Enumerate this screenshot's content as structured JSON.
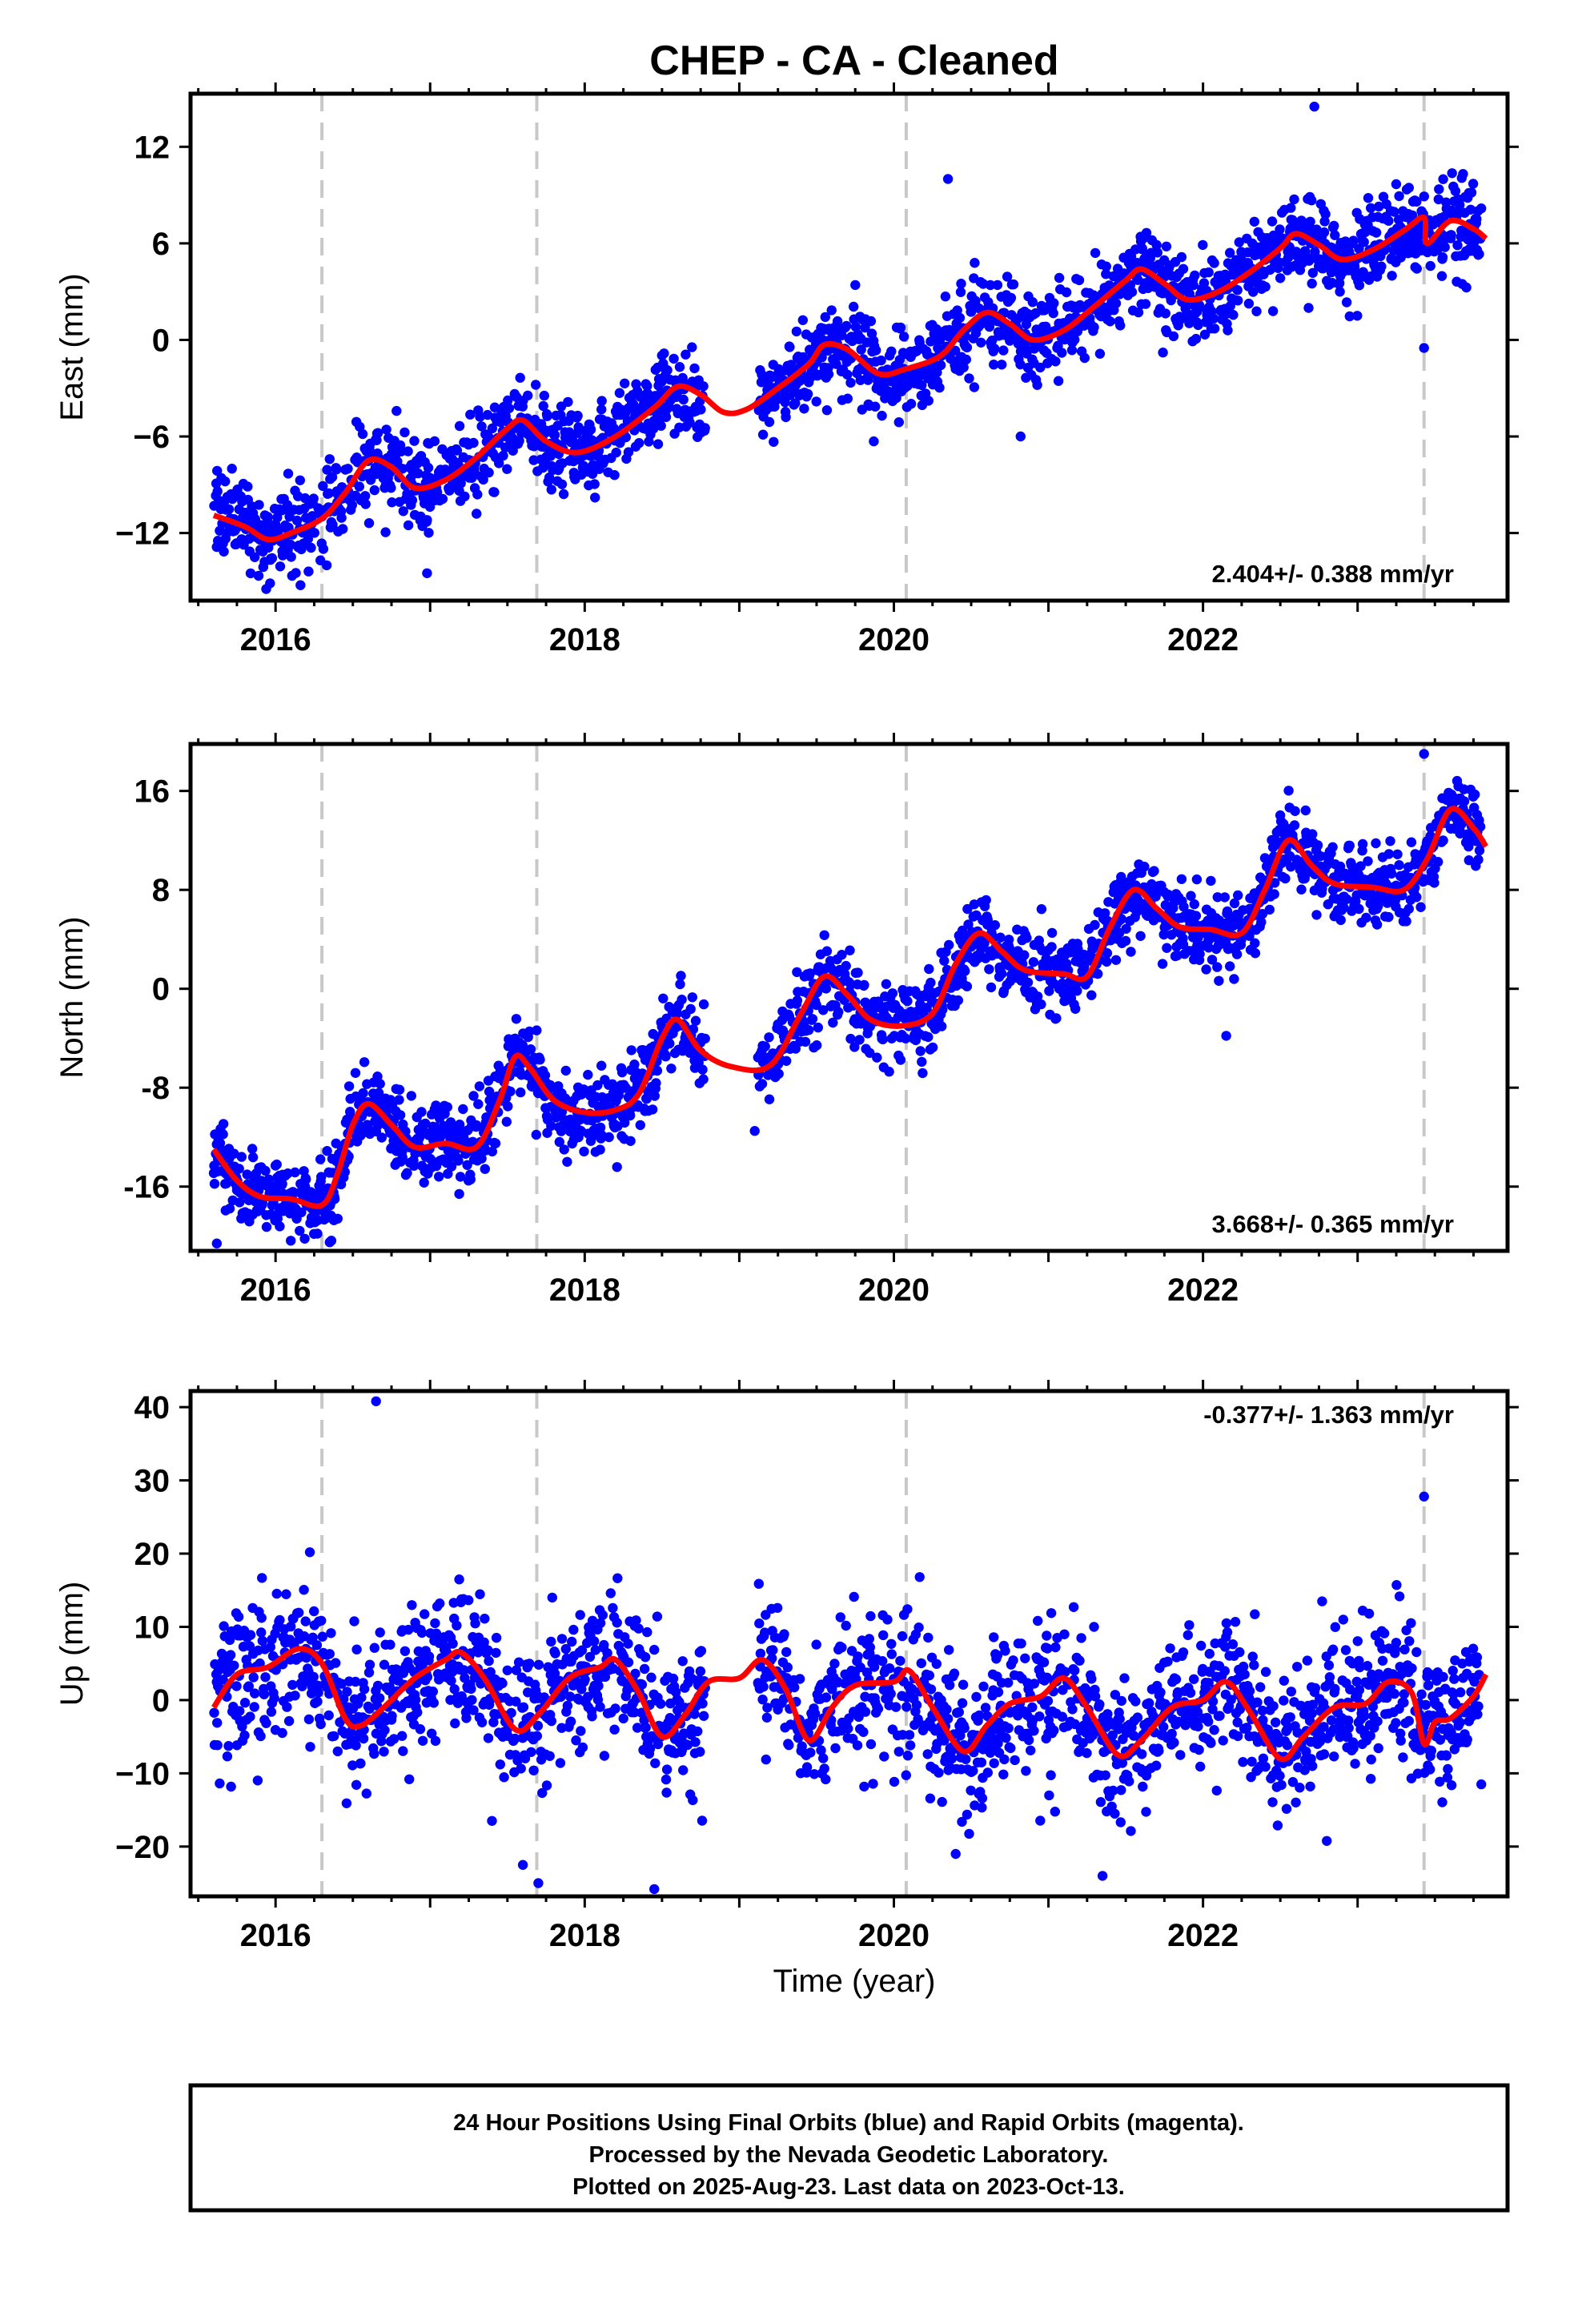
{
  "title": "CHEP  - CA - Cleaned",
  "x_axis_label": "Time (year)",
  "footer": {
    "line1": "24 Hour Positions Using Final Orbits (blue) and Rapid Orbits (magenta).",
    "line2": "Processed by the Nevada Geodetic Laboratory.",
    "line3": "Plotted on 2025-Aug-23. Last data on 2023-Oct-13."
  },
  "colors": {
    "points": "#0000ff",
    "fit": "#ff0000",
    "breaks": "#c8c8c8",
    "frame": "#000000"
  },
  "chart_data": [
    {
      "type": "scatter",
      "ylabel": "East (mm)",
      "rate_text": "2.404+/- 0.388 mm/yr",
      "rate_position": "bottom-right",
      "xlim": [
        2015.45,
        2023.97
      ],
      "ylim": [
        -16.2,
        15.3
      ],
      "xticks": [
        2016,
        2018,
        2020,
        2022
      ],
      "yticks": [
        -12,
        -6,
        0,
        6,
        12
      ],
      "breaks": [
        2016.3,
        2017.69,
        2020.08,
        2023.43
      ],
      "fit_points": [
        [
          2015.6,
          -10.9
        ],
        [
          2015.8,
          -11.6
        ],
        [
          2015.95,
          -12.4
        ],
        [
          2016.1,
          -12.0
        ],
        [
          2016.3,
          -11.1
        ],
        [
          2016.45,
          -9.5
        ],
        [
          2016.6,
          -7.5
        ],
        [
          2016.75,
          -7.9
        ],
        [
          2016.9,
          -9.2
        ],
        [
          2017.1,
          -8.7
        ],
        [
          2017.3,
          -7.3
        ],
        [
          2017.5,
          -5.5
        ],
        [
          2017.6,
          -5.0
        ],
        [
          2017.75,
          -6.3
        ],
        [
          2017.95,
          -7.0
        ],
        [
          2018.2,
          -6.0
        ],
        [
          2018.45,
          -4.2
        ],
        [
          2018.6,
          -2.9
        ],
        [
          2018.75,
          -3.4
        ],
        [
          2018.9,
          -4.5
        ],
        [
          2019.05,
          -4.3
        ],
        [
          2019.25,
          -3.0
        ],
        [
          2019.45,
          -1.5
        ],
        [
          2019.55,
          -0.3
        ],
        [
          2019.7,
          -0.6
        ],
        [
          2019.9,
          -2.1
        ],
        [
          2020.08,
          -1.8
        ],
        [
          2020.3,
          -1.0
        ],
        [
          2020.45,
          0.6
        ],
        [
          2020.6,
          1.7
        ],
        [
          2020.75,
          1.0
        ],
        [
          2020.9,
          0.0
        ],
        [
          2021.1,
          0.6
        ],
        [
          2021.3,
          2.1
        ],
        [
          2021.5,
          3.7
        ],
        [
          2021.6,
          4.4
        ],
        [
          2021.75,
          3.5
        ],
        [
          2021.9,
          2.5
        ],
        [
          2022.1,
          3.0
        ],
        [
          2022.3,
          4.2
        ],
        [
          2022.5,
          5.7
        ],
        [
          2022.6,
          6.6
        ],
        [
          2022.75,
          5.9
        ],
        [
          2022.9,
          5.0
        ],
        [
          2023.1,
          5.6
        ],
        [
          2023.3,
          6.8
        ],
        [
          2023.43,
          7.6
        ],
        [
          2023.45,
          6.0
        ],
        [
          2023.6,
          7.4
        ],
        [
          2023.75,
          6.9
        ],
        [
          2023.83,
          6.3
        ]
      ],
      "scatter_model": {
        "years": [
          2015.6,
          2023.8
        ],
        "noise": 1.35,
        "outliers": [
          [
            2020.35,
            10.0
          ],
          [
            2022.72,
            14.5
          ],
          [
            2016.98,
            -14.5
          ],
          [
            2020.82,
            -6.0
          ],
          [
            2019.87,
            -6.3
          ],
          [
            2023.43,
            -0.5
          ]
        ]
      }
    },
    {
      "type": "scatter",
      "ylabel": "North (mm)",
      "rate_text": "3.668+/- 0.365 mm/yr",
      "rate_position": "bottom-right",
      "xlim": [
        2015.45,
        2023.97
      ],
      "ylim": [
        -21.2,
        19.8
      ],
      "xticks": [
        2016,
        2018,
        2020,
        2022
      ],
      "yticks": [
        -16,
        -8,
        0,
        8,
        16
      ],
      "breaks": [
        2016.3,
        2017.69,
        2020.08,
        2023.43
      ],
      "fit_points": [
        [
          2015.6,
          -13.0
        ],
        [
          2015.75,
          -15.5
        ],
        [
          2015.9,
          -16.8
        ],
        [
          2016.1,
          -17.0
        ],
        [
          2016.3,
          -17.5
        ],
        [
          2016.4,
          -15.0
        ],
        [
          2016.5,
          -11.0
        ],
        [
          2016.6,
          -9.3
        ],
        [
          2016.75,
          -11.0
        ],
        [
          2016.9,
          -12.8
        ],
        [
          2017.1,
          -12.5
        ],
        [
          2017.3,
          -12.8
        ],
        [
          2017.45,
          -9.0
        ],
        [
          2017.55,
          -5.5
        ],
        [
          2017.65,
          -6.5
        ],
        [
          2017.8,
          -9.0
        ],
        [
          2018.0,
          -10.0
        ],
        [
          2018.2,
          -9.8
        ],
        [
          2018.35,
          -8.5
        ],
        [
          2018.5,
          -4.0
        ],
        [
          2018.6,
          -2.5
        ],
        [
          2018.75,
          -5.0
        ],
        [
          2018.95,
          -6.3
        ],
        [
          2019.2,
          -6.2
        ],
        [
          2019.4,
          -2.0
        ],
        [
          2019.55,
          1.0
        ],
        [
          2019.7,
          -0.5
        ],
        [
          2019.85,
          -2.5
        ],
        [
          2020.05,
          -3.0
        ],
        [
          2020.25,
          -2.0
        ],
        [
          2020.4,
          2.0
        ],
        [
          2020.55,
          4.5
        ],
        [
          2020.7,
          3.0
        ],
        [
          2020.85,
          1.5
        ],
        [
          2021.1,
          1.2
        ],
        [
          2021.25,
          1.0
        ],
        [
          2021.4,
          5.0
        ],
        [
          2021.55,
          8.0
        ],
        [
          2021.7,
          6.5
        ],
        [
          2021.85,
          5.0
        ],
        [
          2022.05,
          4.8
        ],
        [
          2022.25,
          4.5
        ],
        [
          2022.4,
          8.0
        ],
        [
          2022.55,
          12.0
        ],
        [
          2022.7,
          10.0
        ],
        [
          2022.85,
          8.5
        ],
        [
          2023.1,
          8.2
        ],
        [
          2023.3,
          8.0
        ],
        [
          2023.45,
          10.5
        ],
        [
          2023.6,
          14.5
        ],
        [
          2023.75,
          13.0
        ],
        [
          2023.83,
          11.5
        ]
      ],
      "scatter_model": {
        "years": [
          2015.6,
          2023.8
        ],
        "noise": 1.6,
        "outliers": [
          [
            2023.43,
            19.0
          ],
          [
            2016.35,
            -20.5
          ],
          [
            2015.62,
            -20.6
          ],
          [
            2022.15,
            -3.8
          ],
          [
            2019.1,
            -11.5
          ]
        ]
      }
    },
    {
      "type": "scatter",
      "ylabel": "Up (mm)",
      "rate_text": "-0.377+/- 1.363 mm/yr",
      "rate_position": "top-right",
      "xlim": [
        2015.45,
        2023.97
      ],
      "ylim": [
        -26.8,
        42.2
      ],
      "xticks": [
        2016,
        2018,
        2020,
        2022
      ],
      "yticks": [
        -20,
        -10,
        0,
        10,
        20,
        30,
        40
      ],
      "breaks": [
        2016.3,
        2017.69,
        2020.08,
        2023.43
      ],
      "fit_points": [
        [
          2015.6,
          -1.0
        ],
        [
          2015.75,
          3.5
        ],
        [
          2015.95,
          4.5
        ],
        [
          2016.15,
          7.0
        ],
        [
          2016.3,
          5.0
        ],
        [
          2016.45,
          -2.5
        ],
        [
          2016.55,
          -3.5
        ],
        [
          2016.7,
          -1.0
        ],
        [
          2016.9,
          3.0
        ],
        [
          2017.1,
          5.5
        ],
        [
          2017.2,
          6.5
        ],
        [
          2017.35,
          3.0
        ],
        [
          2017.55,
          -4.0
        ],
        [
          2017.7,
          -2.0
        ],
        [
          2017.9,
          3.0
        ],
        [
          2018.1,
          4.5
        ],
        [
          2018.2,
          5.5
        ],
        [
          2018.35,
          1.0
        ],
        [
          2018.5,
          -5.0
        ],
        [
          2018.65,
          -2.0
        ],
        [
          2018.8,
          2.5
        ],
        [
          2019.0,
          3.0
        ],
        [
          2019.15,
          5.5
        ],
        [
          2019.3,
          1.5
        ],
        [
          2019.45,
          -5.5
        ],
        [
          2019.6,
          -1.0
        ],
        [
          2019.75,
          2.0
        ],
        [
          2020.0,
          2.5
        ],
        [
          2020.1,
          4.0
        ],
        [
          2020.25,
          -1.0
        ],
        [
          2020.45,
          -7.0
        ],
        [
          2020.6,
          -3.5
        ],
        [
          2020.75,
          -0.5
        ],
        [
          2020.95,
          0.5
        ],
        [
          2021.1,
          3.0
        ],
        [
          2021.25,
          -1.0
        ],
        [
          2021.45,
          -7.5
        ],
        [
          2021.6,
          -5.5
        ],
        [
          2021.8,
          -1.0
        ],
        [
          2022.0,
          0.0
        ],
        [
          2022.15,
          2.5
        ],
        [
          2022.3,
          -1.5
        ],
        [
          2022.5,
          -8.0
        ],
        [
          2022.65,
          -5.0
        ],
        [
          2022.85,
          -1.0
        ],
        [
          2023.05,
          -0.5
        ],
        [
          2023.2,
          2.5
        ],
        [
          2023.35,
          1.0
        ],
        [
          2023.43,
          -6.0
        ],
        [
          2023.5,
          -3.0
        ],
        [
          2023.6,
          -2.5
        ],
        [
          2023.75,
          0.5
        ],
        [
          2023.83,
          3.5
        ]
      ],
      "scatter_model": {
        "years": [
          2015.6,
          2023.8
        ],
        "noise": 5.0,
        "outliers": [
          [
            2016.65,
            40.8
          ],
          [
            2023.43,
            27.8
          ],
          [
            2017.6,
            -22.5
          ],
          [
            2017.7,
            -25.0
          ],
          [
            2018.45,
            -25.8
          ],
          [
            2017.4,
            -16.5
          ],
          [
            2020.4,
            -21.0
          ],
          [
            2021.35,
            -24.0
          ]
        ]
      }
    }
  ]
}
